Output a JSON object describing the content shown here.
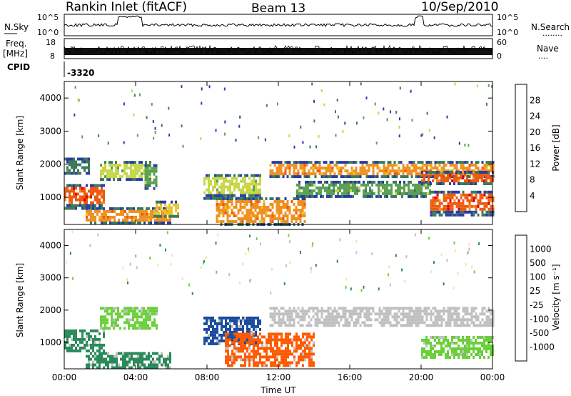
{
  "header": {
    "title": "Rankin Inlet (fitACF)",
    "beam": "Beam 13",
    "date": "10/Sep/2010"
  },
  "status_panels": {
    "nsky_label": "N.Sky",
    "nsky_ticks": [
      "10^5",
      "10^0"
    ],
    "nsearch_label": "N.Search",
    "nsearch_ticks": [
      "10^5",
      "10^0"
    ],
    "freq_label": "Freq.",
    "freq_unit": "[MHz]",
    "freq_ticks": [
      "18",
      "8"
    ],
    "nave_label": "Nave",
    "nave_ticks": [
      "60",
      "0"
    ],
    "cpid_label": "CPID",
    "cpid_value": "-3320"
  },
  "colors": {
    "power": [
      "#1a00ff",
      "#2a3da3",
      "#3c7a5a",
      "#5aa050",
      "#c4d84a",
      "#f0c020",
      "#f09020",
      "#ee5a10",
      "#e00000"
    ],
    "velocity": [
      "#ff0000",
      "#ff5a00",
      "#ff9a20",
      "#f0e8a0",
      "#c0c0c0",
      "#6ad03a",
      "#2a8a5a",
      "#1a4aa0",
      "#2020cc"
    ]
  },
  "chart_data": [
    {
      "type": "heatmap",
      "panel": "power",
      "ylabel": "Slant Range [km]",
      "xlabel": "",
      "xlim": [
        "00:00",
        "00:00"
      ],
      "ylim": [
        180,
        4500
      ],
      "y_ticks": [
        "1000",
        "2000",
        "3000",
        "4000"
      ],
      "x_ticks": [
        "00:00",
        "04:00",
        "08:00",
        "12:00",
        "16:00",
        "20:00",
        "00:00"
      ],
      "colorbar": {
        "title": "Power [dB]",
        "ticks": [
          "4",
          "8",
          "12",
          "16",
          "20",
          "24",
          "28"
        ],
        "range": [
          0,
          32
        ]
      },
      "echo_bands": [
        {
          "start_hour": 0.0,
          "end_hour": 2.2,
          "range_min_km": 700,
          "range_max_km": 1400,
          "power_db": 27
        },
        {
          "start_hour": 0.0,
          "end_hour": 1.4,
          "range_min_km": 1700,
          "range_max_km": 2200,
          "power_db": 10
        },
        {
          "start_hour": 1.2,
          "end_hour": 6.0,
          "range_min_km": 200,
          "range_max_km": 700,
          "power_db": 22
        },
        {
          "start_hour": 2.0,
          "end_hour": 4.8,
          "range_min_km": 1500,
          "range_max_km": 2100,
          "power_db": 16
        },
        {
          "start_hour": 4.5,
          "end_hour": 5.2,
          "range_min_km": 1300,
          "range_max_km": 2000,
          "power_db": 12
        },
        {
          "start_hour": 5.0,
          "end_hour": 6.4,
          "range_min_km": 400,
          "range_max_km": 900,
          "power_db": 20
        },
        {
          "start_hour": 7.8,
          "end_hour": 11.0,
          "range_min_km": 1000,
          "range_max_km": 1700,
          "power_db": 17
        },
        {
          "start_hour": 8.5,
          "end_hour": 13.5,
          "range_min_km": 200,
          "range_max_km": 1000,
          "power_db": 24
        },
        {
          "start_hour": 11.5,
          "end_hour": 24.0,
          "range_min_km": 1600,
          "range_max_km": 2100,
          "power_db": 23
        },
        {
          "start_hour": 13.0,
          "end_hour": 20.5,
          "range_min_km": 1000,
          "range_max_km": 1500,
          "power_db": 12
        },
        {
          "start_hour": 20.0,
          "end_hour": 24.0,
          "range_min_km": 1400,
          "range_max_km": 1800,
          "power_db": 26
        },
        {
          "start_hour": 20.5,
          "end_hour": 24.0,
          "range_min_km": 500,
          "range_max_km": 1200,
          "power_db": 26
        }
      ]
    },
    {
      "type": "heatmap",
      "panel": "velocity",
      "ylabel": "Slant Range [km]",
      "xlabel": "Time UT",
      "xlim": [
        "00:00",
        "00:00"
      ],
      "ylim": [
        180,
        4500
      ],
      "y_ticks": [
        "1000",
        "2000",
        "3000",
        "4000"
      ],
      "x_ticks": [
        "00:00",
        "04:00",
        "08:00",
        "12:00",
        "16:00",
        "20:00",
        "00:00"
      ],
      "colorbar": {
        "title": "Velocity [m s⁻¹]",
        "ticks": [
          "1000",
          "500",
          "100",
          "25",
          "-25",
          "-100",
          "-500",
          "-1000"
        ]
      },
      "echo_bands": [
        {
          "start_hour": 0.0,
          "end_hour": 2.2,
          "range_min_km": 700,
          "range_max_km": 1400,
          "velocity_class": "100 to 500"
        },
        {
          "start_hour": 1.2,
          "end_hour": 6.0,
          "range_min_km": 200,
          "range_max_km": 700,
          "velocity_class": "100 to 500"
        },
        {
          "start_hour": 2.0,
          "end_hour": 5.2,
          "range_min_km": 1400,
          "range_max_km": 2100,
          "velocity_class": "25 to 100"
        },
        {
          "start_hour": 7.8,
          "end_hour": 11.0,
          "range_min_km": 1000,
          "range_max_km": 1800,
          "velocity_class": "500 to 1000"
        },
        {
          "start_hour": 9.0,
          "end_hour": 14.0,
          "range_min_km": 300,
          "range_max_km": 1300,
          "velocity_class": "-100 to -500"
        },
        {
          "start_hour": 11.5,
          "end_hour": 24.0,
          "range_min_km": 1500,
          "range_max_km": 2100,
          "velocity_class": "-25 to 25"
        },
        {
          "start_hour": 20.0,
          "end_hour": 24.0,
          "range_min_km": 500,
          "range_max_km": 1200,
          "velocity_class": "25 to 100"
        }
      ]
    }
  ]
}
